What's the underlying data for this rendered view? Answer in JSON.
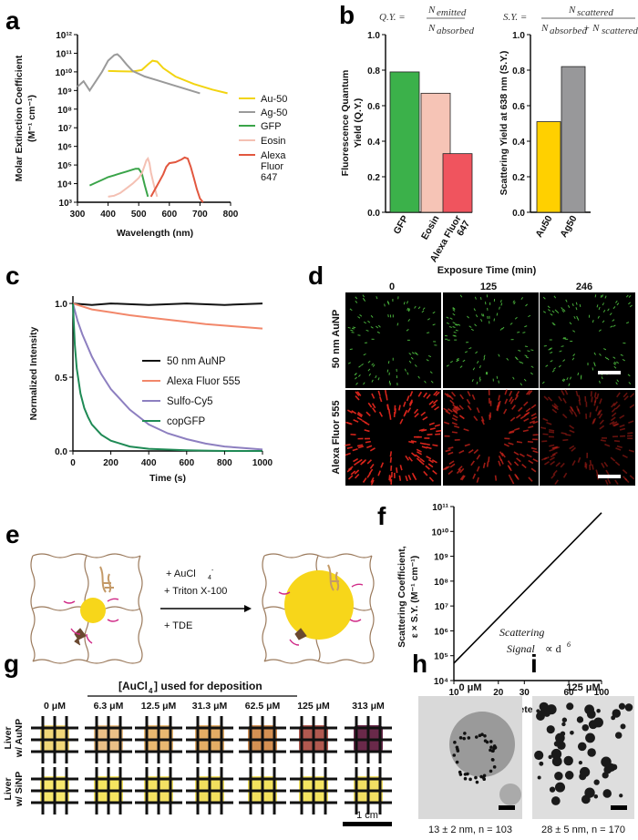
{
  "colors": {
    "au": "#f2d411",
    "ag": "#9a9a9a",
    "gfp": "#3aa449",
    "eosin": "#f4c0b3",
    "alexa647": "#e2573f",
    "au_bar": "#ffd000",
    "ag_bar": "#98989a",
    "alexa647_bar": "#f0545e",
    "gfp_bar": "#3bb14a",
    "eosin_bar": "#f6c4b6",
    "black": "#111111",
    "alexa555": "#f2876a",
    "sulfocy5": "#8d7fc0",
    "copgfp": "#1f8a55"
  },
  "panel_labels": {
    "a": "a",
    "b": "b",
    "c": "c",
    "d": "d",
    "e": "e",
    "f": "f",
    "g": "g",
    "h": "h",
    "i": "i"
  },
  "panel_a": {
    "chart_data": {
      "type": "line",
      "xlabel": "Wavelength (nm)",
      "ylabel": "Molar Extinction Coefficient",
      "ylabel_units": "(M⁻¹ cm⁻¹)",
      "xlim": [
        300,
        800
      ],
      "ylim_log10": [
        3,
        12
      ],
      "y_scale": "log",
      "x_ticks": [
        "300",
        "400",
        "500",
        "600",
        "700",
        "800"
      ],
      "y_ticks": [
        "10³",
        "10⁴",
        "10⁵",
        "10⁶",
        "10⁷",
        "10⁸",
        "10⁹",
        "10¹⁰",
        "10¹¹",
        "10¹²"
      ],
      "legend_position": "right",
      "series": [
        {
          "name": "Au-50",
          "x": [
            400,
            440,
            480,
            510,
            530,
            545,
            560,
            580,
            620,
            680,
            740,
            790
          ],
          "log10_y": [
            10.05,
            10.03,
            10.02,
            10.1,
            10.4,
            10.6,
            10.55,
            10.2,
            9.75,
            9.35,
            9.05,
            8.85
          ]
        },
        {
          "name": "Ag-50",
          "x": [
            300,
            320,
            340,
            360,
            380,
            400,
            420,
            430,
            440,
            460,
            480,
            520,
            560,
            600,
            650,
            700
          ],
          "log10_y": [
            9.2,
            9.5,
            9.0,
            9.5,
            10.0,
            10.6,
            10.9,
            10.95,
            10.8,
            10.4,
            10.05,
            9.75,
            9.55,
            9.35,
            9.1,
            8.85
          ]
        },
        {
          "name": "GFP",
          "x": [
            340,
            360,
            380,
            400,
            420,
            440,
            460,
            480,
            490,
            500,
            510,
            520,
            530
          ],
          "log10_y": [
            3.9,
            4.05,
            4.2,
            4.35,
            4.45,
            4.55,
            4.65,
            4.75,
            4.8,
            4.8,
            4.55,
            3.9,
            3.3
          ]
        },
        {
          "name": "Eosin",
          "x": [
            400,
            420,
            440,
            460,
            480,
            500,
            510,
            520,
            525,
            530,
            535,
            540,
            550,
            560
          ],
          "log10_y": [
            3.3,
            3.35,
            3.5,
            3.75,
            4.0,
            4.3,
            4.55,
            5.0,
            5.25,
            5.35,
            5.1,
            4.6,
            3.9,
            3.3
          ]
        },
        {
          "name": "Alexa\nFluor\n647",
          "x": [
            540,
            560,
            580,
            590,
            600,
            620,
            640,
            650,
            660,
            670,
            680,
            690,
            700,
            710
          ],
          "log10_y": [
            3.3,
            3.9,
            4.5,
            4.9,
            5.1,
            5.15,
            5.3,
            5.4,
            5.35,
            4.9,
            4.3,
            3.7,
            3.2,
            3.0
          ]
        }
      ]
    }
  },
  "panel_b": {
    "eq_qy": "Q.Y. = N_emitted / N_absorbed",
    "eq_qy_lhs": "Q.Y. =",
    "eq_qy_num": "N",
    "eq_qy_num_sub": "emitted",
    "eq_qy_den": "N",
    "eq_qy_den_sub": "absorbed",
    "eq_sy_lhs": "S.Y. =",
    "eq_sy_num": "N",
    "eq_sy_num_sub": "scattered",
    "eq_sy_den": "N",
    "eq_sy_den_sub": "absorbed",
    "eq_sy_plus": "+ N",
    "eq_sy_den_sub2": "scattered",
    "chart_data": [
      {
        "type": "bar",
        "ylabel": "Fluorescence Quantum",
        "ylabel2": "Yield (Q.Y.)",
        "categories": [
          "GFP",
          "Eosin",
          "Alexa Fluor\n647"
        ],
        "values": [
          0.79,
          0.67,
          0.33
        ],
        "ylim": [
          0,
          1.0
        ],
        "y_ticks": [
          "0.0",
          "0.2",
          "0.4",
          "0.6",
          "0.8",
          "1.0"
        ]
      },
      {
        "type": "bar",
        "ylabel": "Scattering Yield at 638 nm (S.Y.)",
        "categories": [
          "Au50",
          "Ag50"
        ],
        "values": [
          0.51,
          0.82
        ],
        "ylim": [
          0,
          1.0
        ],
        "y_ticks": [
          "0.0",
          "0.2",
          "0.4",
          "0.6",
          "0.8",
          "1.0"
        ]
      }
    ]
  },
  "panel_c": {
    "chart_data": {
      "type": "line",
      "xlabel": "Time (s)",
      "ylabel": "Normalized Intensity",
      "xlim": [
        0,
        1000
      ],
      "ylim": [
        0,
        1.05
      ],
      "x_ticks": [
        "0",
        "200",
        "400",
        "600",
        "800",
        "1000"
      ],
      "y_ticks": [
        "0.0",
        "0.5",
        "1.0"
      ],
      "legend_position": "right",
      "series": [
        {
          "name": "50 nm AuNP",
          "x": [
            0,
            100,
            200,
            400,
            600,
            800,
            1000
          ],
          "y": [
            1.0,
            0.99,
            1.0,
            0.99,
            1.0,
            0.99,
            1.0
          ]
        },
        {
          "name": "Alexa Fluor 555",
          "x": [
            0,
            100,
            200,
            300,
            400,
            500,
            600,
            700,
            800,
            900,
            1000
          ],
          "y": [
            1.0,
            0.96,
            0.94,
            0.92,
            0.905,
            0.89,
            0.875,
            0.86,
            0.85,
            0.84,
            0.83
          ]
        },
        {
          "name": "Sulfo-Cy5",
          "x": [
            0,
            25,
            50,
            100,
            150,
            200,
            300,
            400,
            500,
            600,
            700,
            800,
            900,
            1000
          ],
          "y": [
            1.0,
            0.88,
            0.79,
            0.64,
            0.52,
            0.42,
            0.28,
            0.18,
            0.12,
            0.08,
            0.05,
            0.03,
            0.02,
            0.01
          ]
        },
        {
          "name": "copGFP",
          "x": [
            0,
            10,
            20,
            40,
            60,
            80,
            100,
            150,
            200,
            300,
            400,
            600,
            800,
            1000
          ],
          "y": [
            1.0,
            0.72,
            0.56,
            0.39,
            0.29,
            0.23,
            0.18,
            0.11,
            0.07,
            0.03,
            0.015,
            0.005,
            0.0,
            0.0
          ]
        }
      ]
    }
  },
  "panel_d": {
    "title": "Exposure Time  (min)",
    "times": [
      "0",
      "125",
      "246"
    ],
    "row1": "50 nm AuNP",
    "row2": "Alexa Fluor 555"
  },
  "panel_e": {
    "line1": "+ AuCl",
    "line1_sub": "4",
    "line1_sup": "-",
    "line2": "+ Triton X-100",
    "line3": "+ TDE"
  },
  "panel_f": {
    "chart_data": {
      "type": "line",
      "xlabel": "Diameter (nm)",
      "ylabel": "Scattering Coefficient,",
      "ylabel2": "ε × S.Y. (M⁻¹ cm⁻¹)",
      "x_scale": "log",
      "y_scale": "log",
      "x_ticks": [
        "10",
        "20",
        "30",
        "60",
        "100"
      ],
      "y_ticks": [
        "10⁴",
        "10⁵",
        "10⁶",
        "10⁷",
        "10⁸",
        "10⁹",
        "10¹⁰",
        "10¹¹"
      ],
      "series": [
        {
          "x": [
            10,
            100
          ],
          "log10_y": [
            4.7,
            10.75
          ]
        }
      ],
      "annotation_italic_1": "Scattering",
      "annotation_italic_2": "Signal",
      "annotation_prop": "∝ d",
      "annotation_exp": "6"
    }
  },
  "panel_g": {
    "header": "[AuCl",
    "header_sub": "4",
    "header_end": "] used for deposition",
    "concentrations": [
      "0 μM",
      "6.3 μM",
      "12.5 μM",
      "31.3 μM",
      "62.5 μM",
      "125 μM",
      "313 μM"
    ],
    "row1a": "Liver",
    "row1b": "w/ AuNP",
    "row2a": "Liver",
    "row2b": "w/ SiNP",
    "scale": "1 cm",
    "row1_colors": [
      "#f0d36a",
      "#e9b97a",
      "#e7b062",
      "#e1a454",
      "#cf8440",
      "#a9473d",
      "#5a1236"
    ],
    "row2_colors": [
      "#f6e55d",
      "#f5e24f",
      "#f3df52",
      "#f1dc4b",
      "#f2df4c",
      "#f3e150",
      "#f1dc52"
    ]
  },
  "panel_h": {
    "title": "0 μM",
    "caption": "13 ± 2 nm,  n = 103"
  },
  "panel_i": {
    "title": "125 μM",
    "caption": "28 ± 5 nm,  n = 170"
  }
}
